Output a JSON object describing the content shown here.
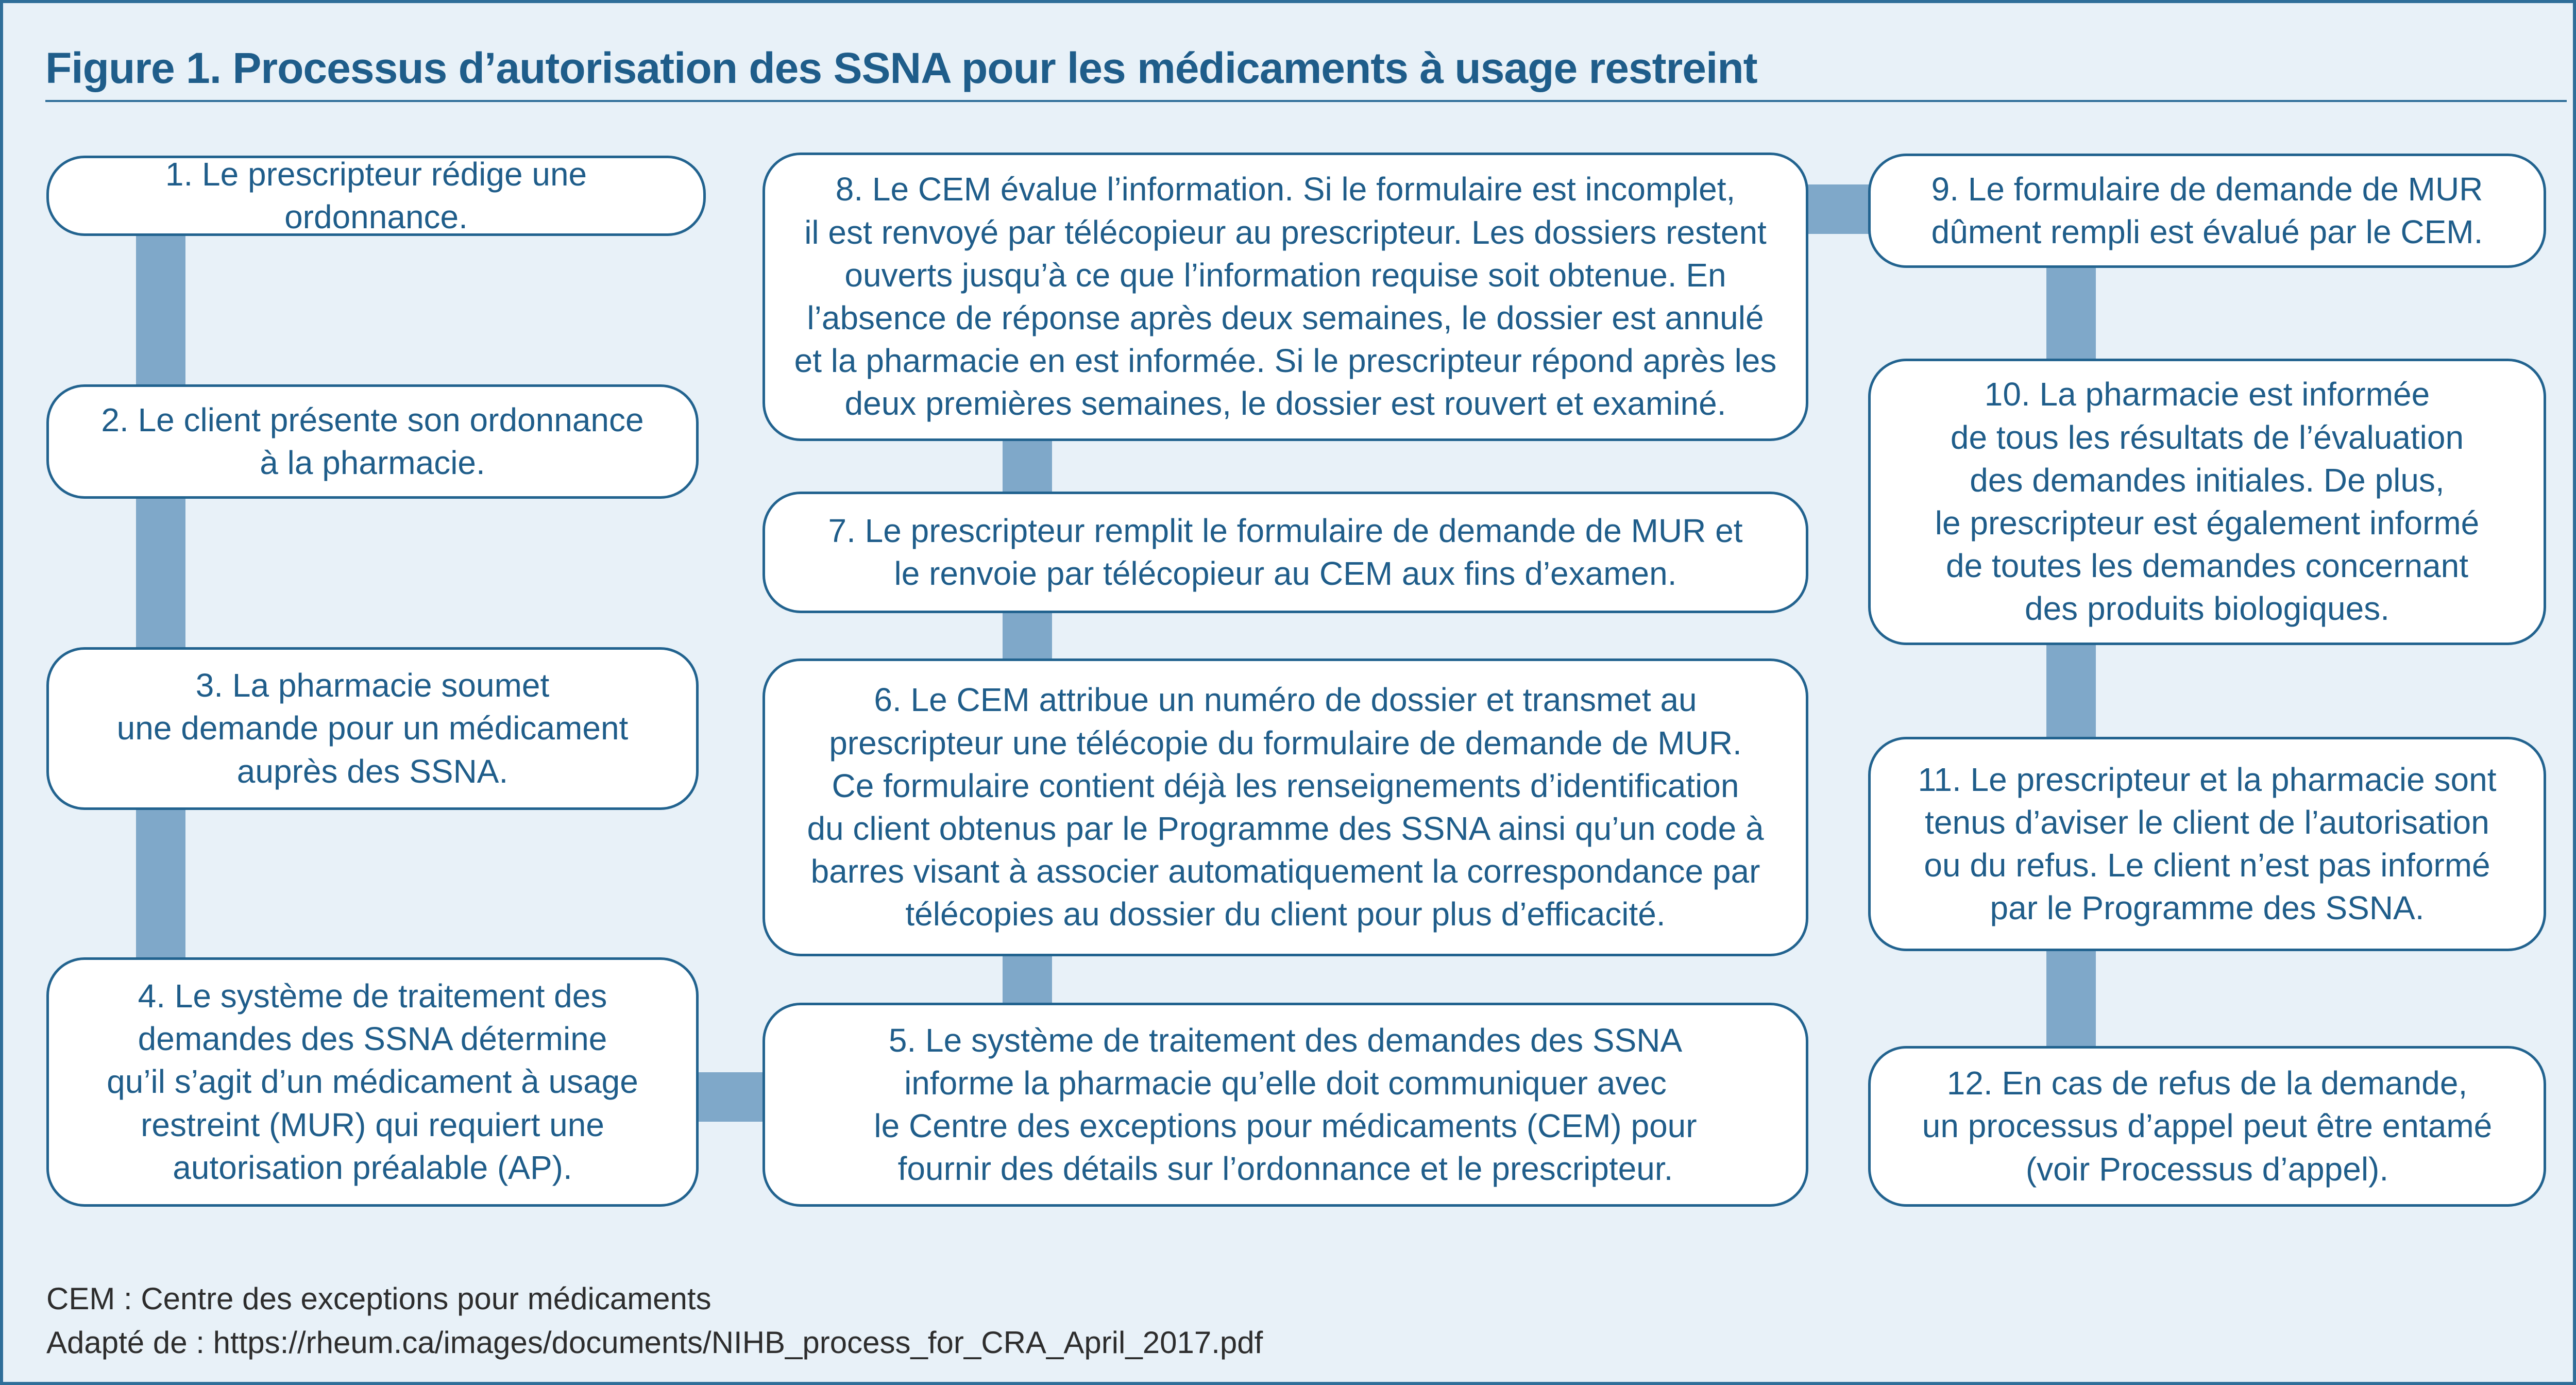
{
  "title": "Figure 1. Processus d’autorisation des SSNA pour les médicaments à usage restreint",
  "steps": [
    {
      "text": "1. Le prescripteur rédige une ordonnance."
    },
    {
      "text": "2. Le client présente son ordonnance\nà la pharmacie."
    },
    {
      "text": "3. La pharmacie soumet\nune demande pour un médicament\nauprès des SSNA."
    },
    {
      "text": "4. Le système de traitement des\ndemandes des SSNA détermine\nqu’il s’agit d’un médicament à usage\nrestreint (MUR) qui requiert une\nautorisation préalable (AP)."
    },
    {
      "text": "5. Le système de traitement des demandes des SSNA\ninforme la pharmacie qu’elle doit communiquer avec\nle Centre des exceptions pour médicaments (CEM) pour\nfournir des détails sur l’ordonnance et le prescripteur."
    },
    {
      "text": "6. Le CEM attribue un numéro de dossier et transmet au\nprescripteur une télécopie du formulaire de demande de MUR.\nCe formulaire contient déjà les renseignements d’identification\ndu client obtenus par le Programme des SSNA ainsi qu’un code à\nbarres visant à associer automatiquement la correspondance par\ntélécopies au dossier du client pour plus d’efficacité."
    },
    {
      "text": "7. Le prescripteur remplit le formulaire de demande de MUR et\nle renvoie par télécopieur au CEM aux fins d’examen."
    },
    {
      "text": "8. Le CEM évalue l’information. Si le formulaire est incomplet,\nil est renvoyé par télécopieur au prescripteur. Les dossiers restent\nouverts jusqu’à ce que l’information requise soit obtenue. En\nl’absence de réponse après deux semaines, le dossier est annulé\net la pharmacie en est informée. Si le prescripteur répond après les\ndeux premières semaines, le dossier est rouvert et examiné."
    },
    {
      "text": "9. Le formulaire de demande de MUR\ndûment rempli est évalué par le CEM."
    },
    {
      "text": "10. La pharmacie est informée\nde tous les résultats de l’évaluation\ndes demandes initiales. De plus,\nle prescripteur est également informé\nde toutes les demandes concernant\ndes produits biologiques."
    },
    {
      "text": "11. Le prescripteur et la pharmacie sont\ntenus d’aviser le client de l’autorisation\nou du refus. Le client n’est pas informé\npar le Programme des SSNA."
    },
    {
      "text": "12. En cas de refus de la demande,\nun processus d’appel peut être entamé\n(voir Processus d’appel)."
    }
  ],
  "footnotes": {
    "abbreviation": "CEM : Centre des exceptions pour médicaments",
    "source": "Adapté de : https://rheum.ca/images/documents/NIHB_process_for_CRA_April_2017.pdf"
  },
  "colors": {
    "border": "#22638f",
    "title": "#1f5d8a",
    "connector": "#7fa8c9",
    "background": "#e8f1f8"
  }
}
